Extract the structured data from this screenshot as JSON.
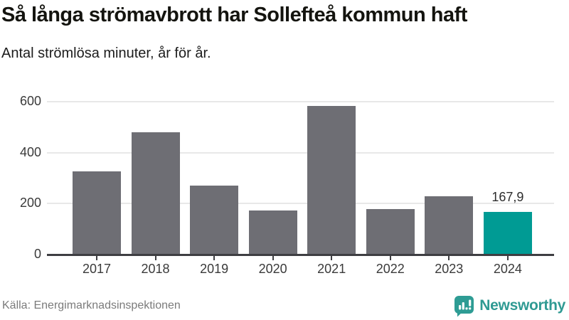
{
  "header": {
    "title": "Så långa strömavbrott har Sollefteå kommun haft",
    "subtitle": "Antal strömlösa minuter, år för år."
  },
  "chart_data": {
    "type": "bar",
    "title": "Så långa strömavbrott har Sollefteå kommun haft",
    "subtitle": "Antal strömlösa minuter, år för år.",
    "categories": [
      "2017",
      "2018",
      "2019",
      "2020",
      "2021",
      "2022",
      "2023",
      "2024"
    ],
    "values": [
      327,
      481,
      271,
      172,
      582,
      180,
      228,
      167.9
    ],
    "value_labels": [
      "",
      "",
      "",
      "",
      "",
      "",
      "",
      "167,9"
    ],
    "highlight_index": 7,
    "bar_color": "#6e6e74",
    "highlight_color": "#009b94",
    "xlabel": "",
    "ylabel": "",
    "yticks": [
      0,
      200,
      400,
      600
    ],
    "ylim": [
      0,
      600
    ],
    "grid": true,
    "gridline_color": "#e8e8e8",
    "axis_color": "#3e3e42",
    "legend_position": "none"
  },
  "footer": {
    "source": "Källa: Energimarknadsinspektionen",
    "brand": "Newsworthy",
    "brand_color": "#2f9a93"
  }
}
